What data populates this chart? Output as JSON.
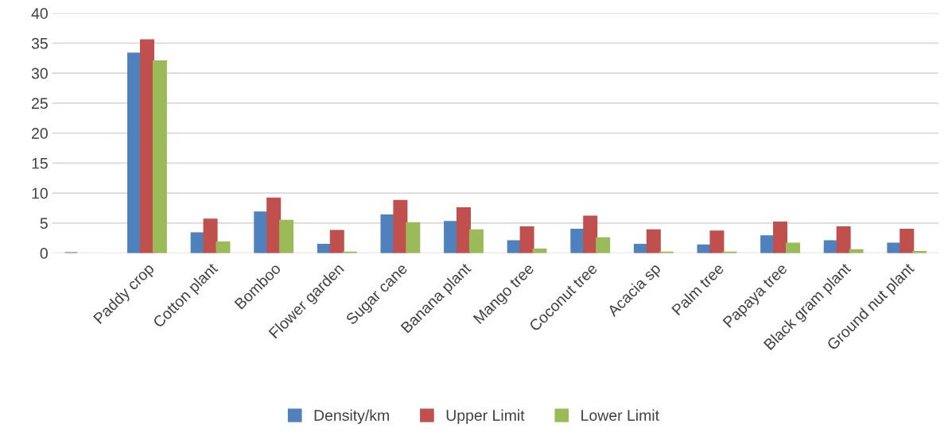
{
  "chart_data": {
    "type": "bar",
    "categories": [
      null,
      "Paddy crop",
      "Cotton plant",
      "Bomboo",
      "Flower garden",
      "Sugar cane",
      "Banana plant",
      "Mango tree",
      "Coconut tree",
      "Acacia sp",
      "Palm tree",
      "Papaya tree",
      "Black gram plant",
      "Ground nut plant"
    ],
    "series": [
      {
        "name": "Density/km",
        "color": "#4f81bd",
        "values": [
          0,
          33.3,
          3.3,
          6.8,
          1.4,
          6.3,
          5.2,
          2.0,
          3.9,
          1.4,
          1.3,
          2.8,
          2.0,
          1.6
        ]
      },
      {
        "name": "Upper Limit",
        "color": "#c0504d",
        "values": [
          null,
          35.5,
          5.6,
          9.1,
          3.7,
          8.7,
          7.5,
          4.3,
          6.1,
          3.8,
          3.6,
          5.1,
          4.3,
          3.9
        ]
      },
      {
        "name": "Lower Limit",
        "color": "#9bbb59",
        "values": [
          null,
          32,
          1.8,
          5.4,
          0.1,
          5.0,
          3.8,
          0.6,
          2.5,
          0.1,
          0.1,
          1.6,
          0.5,
          0.2
        ]
      }
    ],
    "ylim": [
      0,
      40
    ],
    "yticks": [
      0,
      5,
      10,
      15,
      20,
      25,
      30,
      35,
      40
    ],
    "grid": "y",
    "legend": "bottom"
  }
}
